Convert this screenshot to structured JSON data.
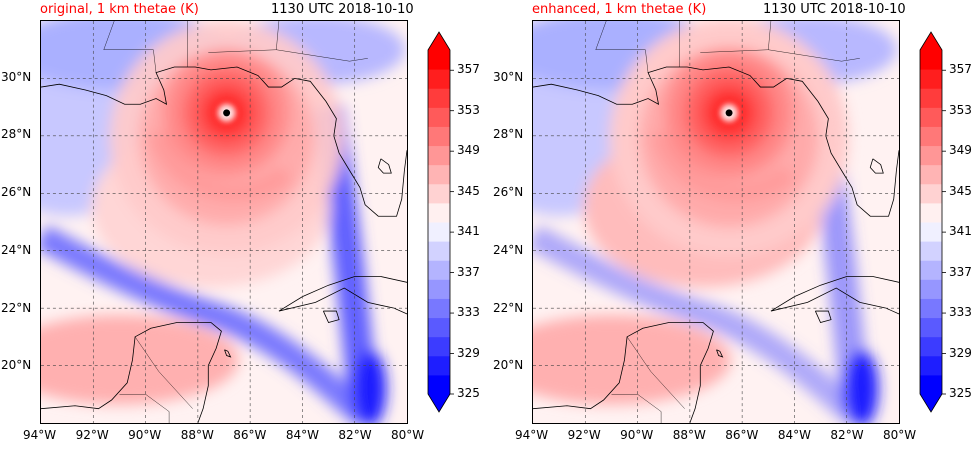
{
  "panels": [
    {
      "title": "original, 1 km thetae (K)",
      "time_label": "1130 UTC 2018-10-10",
      "storm_center": {
        "lon": -86.9,
        "lat": 28.8
      },
      "core_intensity": 0.85
    },
    {
      "title": "enhanced, 1 km thetae (K)",
      "time_label": "1130 UTC 2018-10-10",
      "storm_center": {
        "lon": -86.5,
        "lat": 28.8
      },
      "core_intensity": 1.0
    }
  ],
  "map_extent": {
    "lon_min": -94,
    "lon_max": -80,
    "lat_min": 18,
    "lat_max": 32
  },
  "lon_ticks": [
    "94°W",
    "92°W",
    "90°W",
    "88°W",
    "86°W",
    "84°W",
    "82°W",
    "80°W"
  ],
  "lat_ticks": [
    "20°N",
    "22°N",
    "24°N",
    "26°N",
    "28°N",
    "30°N"
  ],
  "colorbar": {
    "min": 325,
    "max": 359,
    "step": 2,
    "labels": [
      "325",
      "329",
      "333",
      "337",
      "341",
      "345",
      "349",
      "353",
      "357"
    ],
    "colors": [
      "#0000ff",
      "#1e1eff",
      "#3c3cff",
      "#5a5aff",
      "#7878ff",
      "#9696ff",
      "#b4b4ff",
      "#d2d2ff",
      "#f0f0ff",
      "#fff0f0",
      "#ffd2d2",
      "#ffb4b4",
      "#ff9696",
      "#ff7878",
      "#ff5a5a",
      "#ff3c3c",
      "#ff1e1e",
      "#ff0000"
    ],
    "extend": "both"
  },
  "colors": {
    "warm": "#ff0000",
    "cool": "#0000ff",
    "neutral": "#ffffff",
    "coast": "#000000"
  }
}
